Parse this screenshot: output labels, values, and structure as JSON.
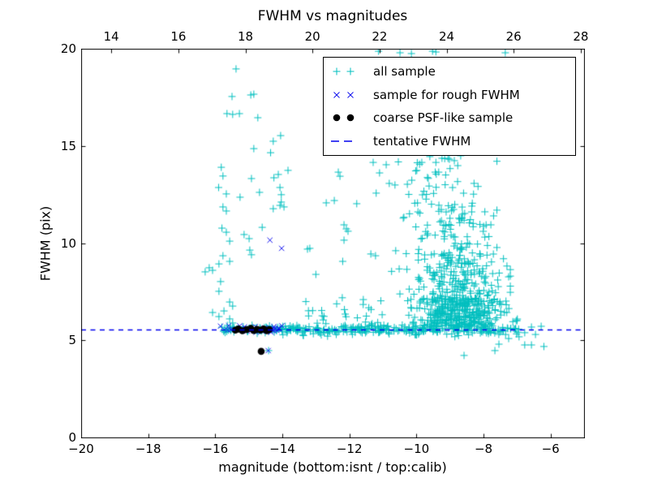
{
  "chart_data": {
    "type": "scatter",
    "title": "FWHM vs magnitudes",
    "xlabel": "magnitude (bottom:isnt / top:calib)",
    "ylabel": "FWHM (pix)",
    "grid": false,
    "legend_position": "upper right",
    "x_bottom": {
      "min": -20,
      "max": -5,
      "ticks": [
        -20,
        -18,
        -16,
        -14,
        -12,
        -10,
        -8,
        -6
      ],
      "tick_labels": [
        "−20",
        "−18",
        "−16",
        "−14",
        "−12",
        "−10",
        "−8",
        "−6"
      ]
    },
    "x_top": {
      "offset_from_bottom": 33.1,
      "ticks": [
        14,
        16,
        18,
        20,
        22,
        24,
        26,
        28
      ],
      "tick_labels": [
        "14",
        "16",
        "18",
        "20",
        "22",
        "24",
        "26",
        "28"
      ]
    },
    "y": {
      "min": 0,
      "max": 20,
      "ticks": [
        0,
        5,
        10,
        15,
        20
      ],
      "tick_labels": [
        "0",
        "5",
        "10",
        "15",
        "20"
      ]
    },
    "tentative_fwhm": 5.55,
    "colors": {
      "all_sample": "#00bfbf",
      "rough_fwhm": "#1414ee",
      "psf_like": "#000000",
      "line": "#0000ee",
      "axis": "#000000"
    },
    "legend": [
      {
        "label": "all sample",
        "marker": "plus",
        "color": "#00bfbf"
      },
      {
        "label": "sample for rough FWHM",
        "marker": "x",
        "color": "#1414ee"
      },
      {
        "label": "coarse PSF-like sample",
        "marker": "dot",
        "color": "#000000"
      },
      {
        "label": "tentative FWHM",
        "marker": "dash",
        "color": "#0000ee"
      }
    ],
    "seed": 20231104,
    "series": {
      "all_sample": {
        "marker": "plus",
        "color": "#00bfbf",
        "points": [
          [
            -15.38,
            18.96
          ],
          [
            -15.5,
            17.54
          ],
          [
            -14.94,
            17.62
          ],
          [
            -14.85,
            17.66
          ],
          [
            -15.65,
            16.66
          ],
          [
            -15.48,
            16.62
          ],
          [
            -15.28,
            16.66
          ],
          [
            -14.73,
            16.45
          ],
          [
            -14.05,
            15.53
          ],
          [
            -14.27,
            15.24
          ],
          [
            -14.35,
            14.65
          ],
          [
            -14.85,
            14.86
          ],
          [
            -15.82,
            13.9
          ],
          [
            -15.77,
            13.45
          ],
          [
            -13.83,
            13.74
          ],
          [
            -14.12,
            13.53
          ],
          [
            -14.25,
            13.36
          ],
          [
            -14.92,
            13.32
          ],
          [
            -15.9,
            12.86
          ],
          [
            -15.67,
            12.53
          ],
          [
            -15.26,
            12.36
          ],
          [
            -14.68,
            12.61
          ],
          [
            -14.07,
            12.86
          ],
          [
            -14.03,
            12.49
          ],
          [
            -14.03,
            12.11
          ],
          [
            -15.77,
            11.86
          ],
          [
            -15.67,
            11.65
          ],
          [
            -14.27,
            11.77
          ],
          [
            -14.07,
            11.94
          ],
          [
            -13.95,
            11.86
          ],
          [
            -15.8,
            10.77
          ],
          [
            -15.67,
            10.56
          ],
          [
            -15.57,
            10.1
          ],
          [
            -15.14,
            10.44
          ],
          [
            -14.99,
            10.23
          ],
          [
            -14.6,
            10.81
          ],
          [
            -14.97,
            9.64
          ],
          [
            -14.92,
            9.4
          ],
          [
            -13.25,
            9.69
          ],
          [
            -13.18,
            9.73
          ],
          [
            -15.77,
            9.35
          ],
          [
            -16.18,
            8.73
          ],
          [
            -16.08,
            8.6
          ],
          [
            -15.89,
            8.93
          ],
          [
            -15.57,
            9.06
          ],
          [
            -16.3,
            8.52
          ],
          [
            -15.84,
            8.02
          ],
          [
            -15.89,
            7.52
          ],
          [
            -15.57,
            6.97
          ],
          [
            -15.48,
            6.76
          ],
          [
            -15.74,
            6.51
          ],
          [
            -16.08,
            6.43
          ],
          [
            -15.89,
            6.22
          ],
          [
            -15.57,
            6.1
          ],
          [
            -15.48,
            5.89
          ],
          [
            -12.33,
            13.65
          ],
          [
            -12.28,
            13.44
          ],
          [
            -12.45,
            12.19
          ],
          [
            -12.69,
            12.07
          ],
          [
            -12.16,
            10.94
          ],
          [
            -12.09,
            10.73
          ],
          [
            -12.04,
            10.61
          ],
          [
            -12.16,
            10.15
          ],
          [
            -13.0,
            8.39
          ],
          [
            -12.2,
            9.06
          ],
          [
            -11.36,
            9.44
          ],
          [
            -11.22,
            9.35
          ],
          [
            -12.81,
            6.26
          ],
          [
            -11.29,
            14.15
          ],
          [
            -11.1,
            13.61
          ],
          [
            -10.81,
            13.07
          ],
          [
            -11.2,
            12.57
          ],
          [
            -9.6,
            14.45
          ],
          [
            -9.42,
            14.15
          ],
          [
            -8.87,
            14.24
          ],
          [
            -8.68,
            14.49
          ],
          [
            -9.06,
            14.36
          ],
          [
            -9.44,
            13.65
          ],
          [
            -9.84,
            14.15
          ],
          [
            -7.78,
            10.94
          ],
          [
            -11.13,
            19.87
          ],
          [
            -10.49,
            19.79
          ],
          [
            -10.15,
            19.75
          ],
          [
            -9.52,
            19.87
          ],
          [
            -9.42,
            19.83
          ],
          [
            -7.35,
            19.79
          ],
          [
            -7.74,
            6.97
          ],
          [
            -7.47,
            6.85
          ],
          [
            -7.0,
            6.01
          ],
          [
            -6.77,
            5.39
          ],
          [
            -6.57,
            5.68
          ],
          [
            -6.28,
            5.72
          ],
          [
            -8.58,
            4.22
          ],
          [
            -7.66,
            4.47
          ],
          [
            -7.54,
            4.8
          ],
          [
            -7.25,
            5.09
          ],
          [
            -6.77,
            4.76
          ],
          [
            -6.57,
            4.76
          ],
          [
            -6.2,
            4.68
          ],
          [
            -6.94,
            5.18
          ],
          [
            -6.45,
            5.3
          ],
          [
            -14.41,
            4.47
          ]
        ],
        "clusters": [
          {
            "count": 55,
            "x": {
              "dist": "uniform",
              "a": -15.9,
              "b": -13.95
            },
            "y": {
              "dist": "normal",
              "mu": 5.55,
              "sigma": 0.12
            }
          },
          {
            "count": 270,
            "x": {
              "dist": "uniform",
              "a": -13.95,
              "b": -6.95
            },
            "y": {
              "dist": "normal",
              "mu": 5.55,
              "sigma": 0.12
            }
          },
          {
            "count": 22,
            "x": {
              "dist": "uniform",
              "a": -13.3,
              "b": -10.9
            },
            "y": {
              "dist": "uniform",
              "a": 5.85,
              "b": 7.2
            }
          },
          {
            "count": 330,
            "x": {
              "dist": "normal",
              "mu": -8.75,
              "sigma": 0.7,
              "clip": [
                -11.3,
                -6.9
              ]
            },
            "y": {
              "dist": "uniform",
              "a": 5.7,
              "b": 7.2
            }
          },
          {
            "count": 170,
            "x": {
              "dist": "normal",
              "mu": -8.8,
              "sigma": 0.7,
              "clip": [
                -10.8,
                -7.2
              ]
            },
            "y": {
              "dist": "uniform",
              "a": 7.2,
              "b": 9.5
            }
          },
          {
            "count": 80,
            "x": {
              "dist": "normal",
              "mu": -9.0,
              "sigma": 0.75,
              "clip": [
                -10.8,
                -7.6
              ]
            },
            "y": {
              "dist": "uniform",
              "a": 9.5,
              "b": 12.0
            }
          },
          {
            "count": 40,
            "x": {
              "dist": "normal",
              "mu": -9.4,
              "sigma": 1.0,
              "clip": [
                -12.4,
                -7.6
              ]
            },
            "y": {
              "dist": "uniform",
              "a": 12.0,
              "b": 14.4
            }
          }
        ]
      },
      "rough_fwhm": {
        "marker": "x",
        "color": "#1414ee",
        "points": [
          [
            -14.37,
            10.15
          ],
          [
            -14.02,
            9.73
          ],
          [
            -14.42,
            4.47
          ]
        ],
        "clusters": [
          {
            "count": 30,
            "x": {
              "dist": "uniform",
              "a": -15.88,
              "b": -14.0
            },
            "y": {
              "dist": "normal",
              "mu": 5.55,
              "sigma": 0.09
            }
          }
        ]
      },
      "psf_like": {
        "marker": "dot",
        "color": "#000000",
        "points": [
          [
            -15.4,
            5.52
          ],
          [
            -15.31,
            5.58
          ],
          [
            -15.19,
            5.49
          ],
          [
            -15.06,
            5.55
          ],
          [
            -14.94,
            5.61
          ],
          [
            -14.85,
            5.5
          ],
          [
            -14.75,
            5.56
          ],
          [
            -14.65,
            5.52
          ],
          [
            -14.56,
            5.58
          ],
          [
            -14.46,
            5.49
          ],
          [
            -14.39,
            5.55
          ],
          [
            -14.63,
            4.43
          ]
        ],
        "clusters": []
      }
    }
  }
}
